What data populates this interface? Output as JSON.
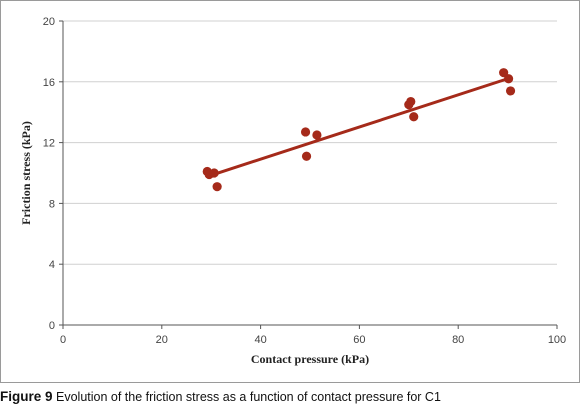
{
  "caption": {
    "label": "Figure 9",
    "text": "Evolution of the friction stress as a function of contact pressure for C1"
  },
  "chart_data": {
    "type": "scatter",
    "title": "",
    "xlabel": "Contact pressure (kPa)",
    "ylabel": "Friction stress (kPa)",
    "xlim": [
      0,
      100
    ],
    "ylim": [
      0,
      20
    ],
    "xticks": [
      0,
      20,
      40,
      60,
      80,
      100
    ],
    "yticks": [
      0,
      4,
      8,
      12,
      16,
      20
    ],
    "grid": "horizontal",
    "marker_color": "#a52a1a",
    "line_color": "#a52a1a",
    "series": [
      {
        "points": [
          {
            "x": 29.2,
            "y": 10.1
          },
          {
            "x": 29.6,
            "y": 9.9
          },
          {
            "x": 30.6,
            "y": 10.0
          },
          {
            "x": 31.2,
            "y": 9.1
          },
          {
            "x": 49.1,
            "y": 12.7
          },
          {
            "x": 49.3,
            "y": 11.1
          },
          {
            "x": 51.4,
            "y": 12.5
          },
          {
            "x": 70.0,
            "y": 14.5
          },
          {
            "x": 70.4,
            "y": 14.7
          },
          {
            "x": 71.0,
            "y": 13.7
          },
          {
            "x": 89.2,
            "y": 16.6
          },
          {
            "x": 90.2,
            "y": 16.2
          },
          {
            "x": 90.6,
            "y": 15.4
          }
        ]
      }
    ],
    "trendline": {
      "x": [
        29.5,
        90.0
      ],
      "y": [
        9.8,
        16.2
      ]
    }
  }
}
